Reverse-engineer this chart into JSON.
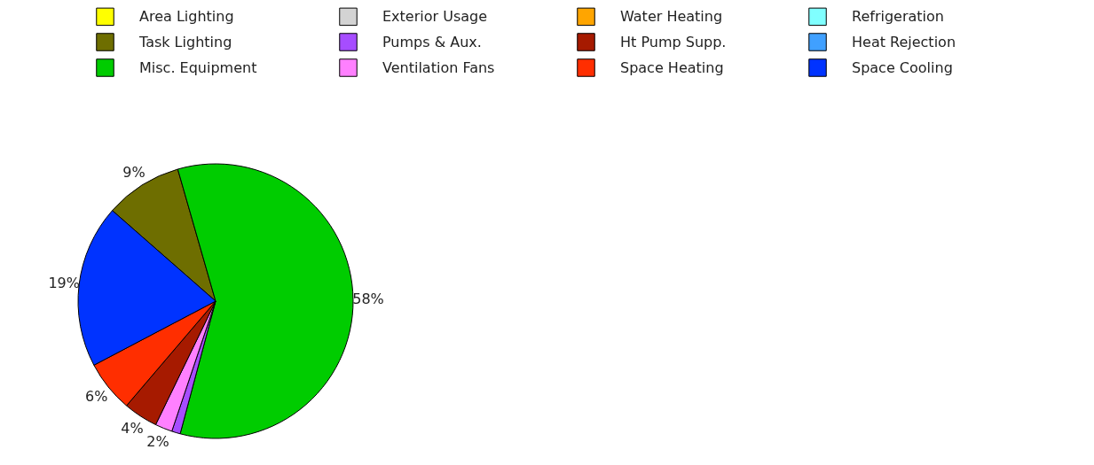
{
  "chart_data": {
    "type": "pie",
    "legend": "top",
    "categories": [
      "Area Lighting",
      "Task Lighting",
      "Misc. Equipment",
      "Exterior Usage",
      "Pumps & Aux.",
      "Ventilation Fans",
      "Water Heating",
      "Ht Pump Supp.",
      "Space Heating",
      "Refrigeration",
      "Heat Rejection",
      "Space Cooling"
    ],
    "values": [
      0,
      9,
      58,
      0,
      1,
      2,
      0,
      4,
      6,
      0,
      0,
      19
    ],
    "value_labels": [
      null,
      "9%",
      "58%",
      null,
      null,
      "2%",
      null,
      "4%",
      "6%",
      null,
      null,
      "19%"
    ],
    "colors": [
      "#ffff00",
      "#6e6e00",
      "#00cc00",
      "#d3d3d3",
      "#a64dff",
      "#ff80ff",
      "#ffa500",
      "#a61a00",
      "#ff2e00",
      "#80ffff",
      "#40a0ff",
      "#0033ff"
    ]
  }
}
